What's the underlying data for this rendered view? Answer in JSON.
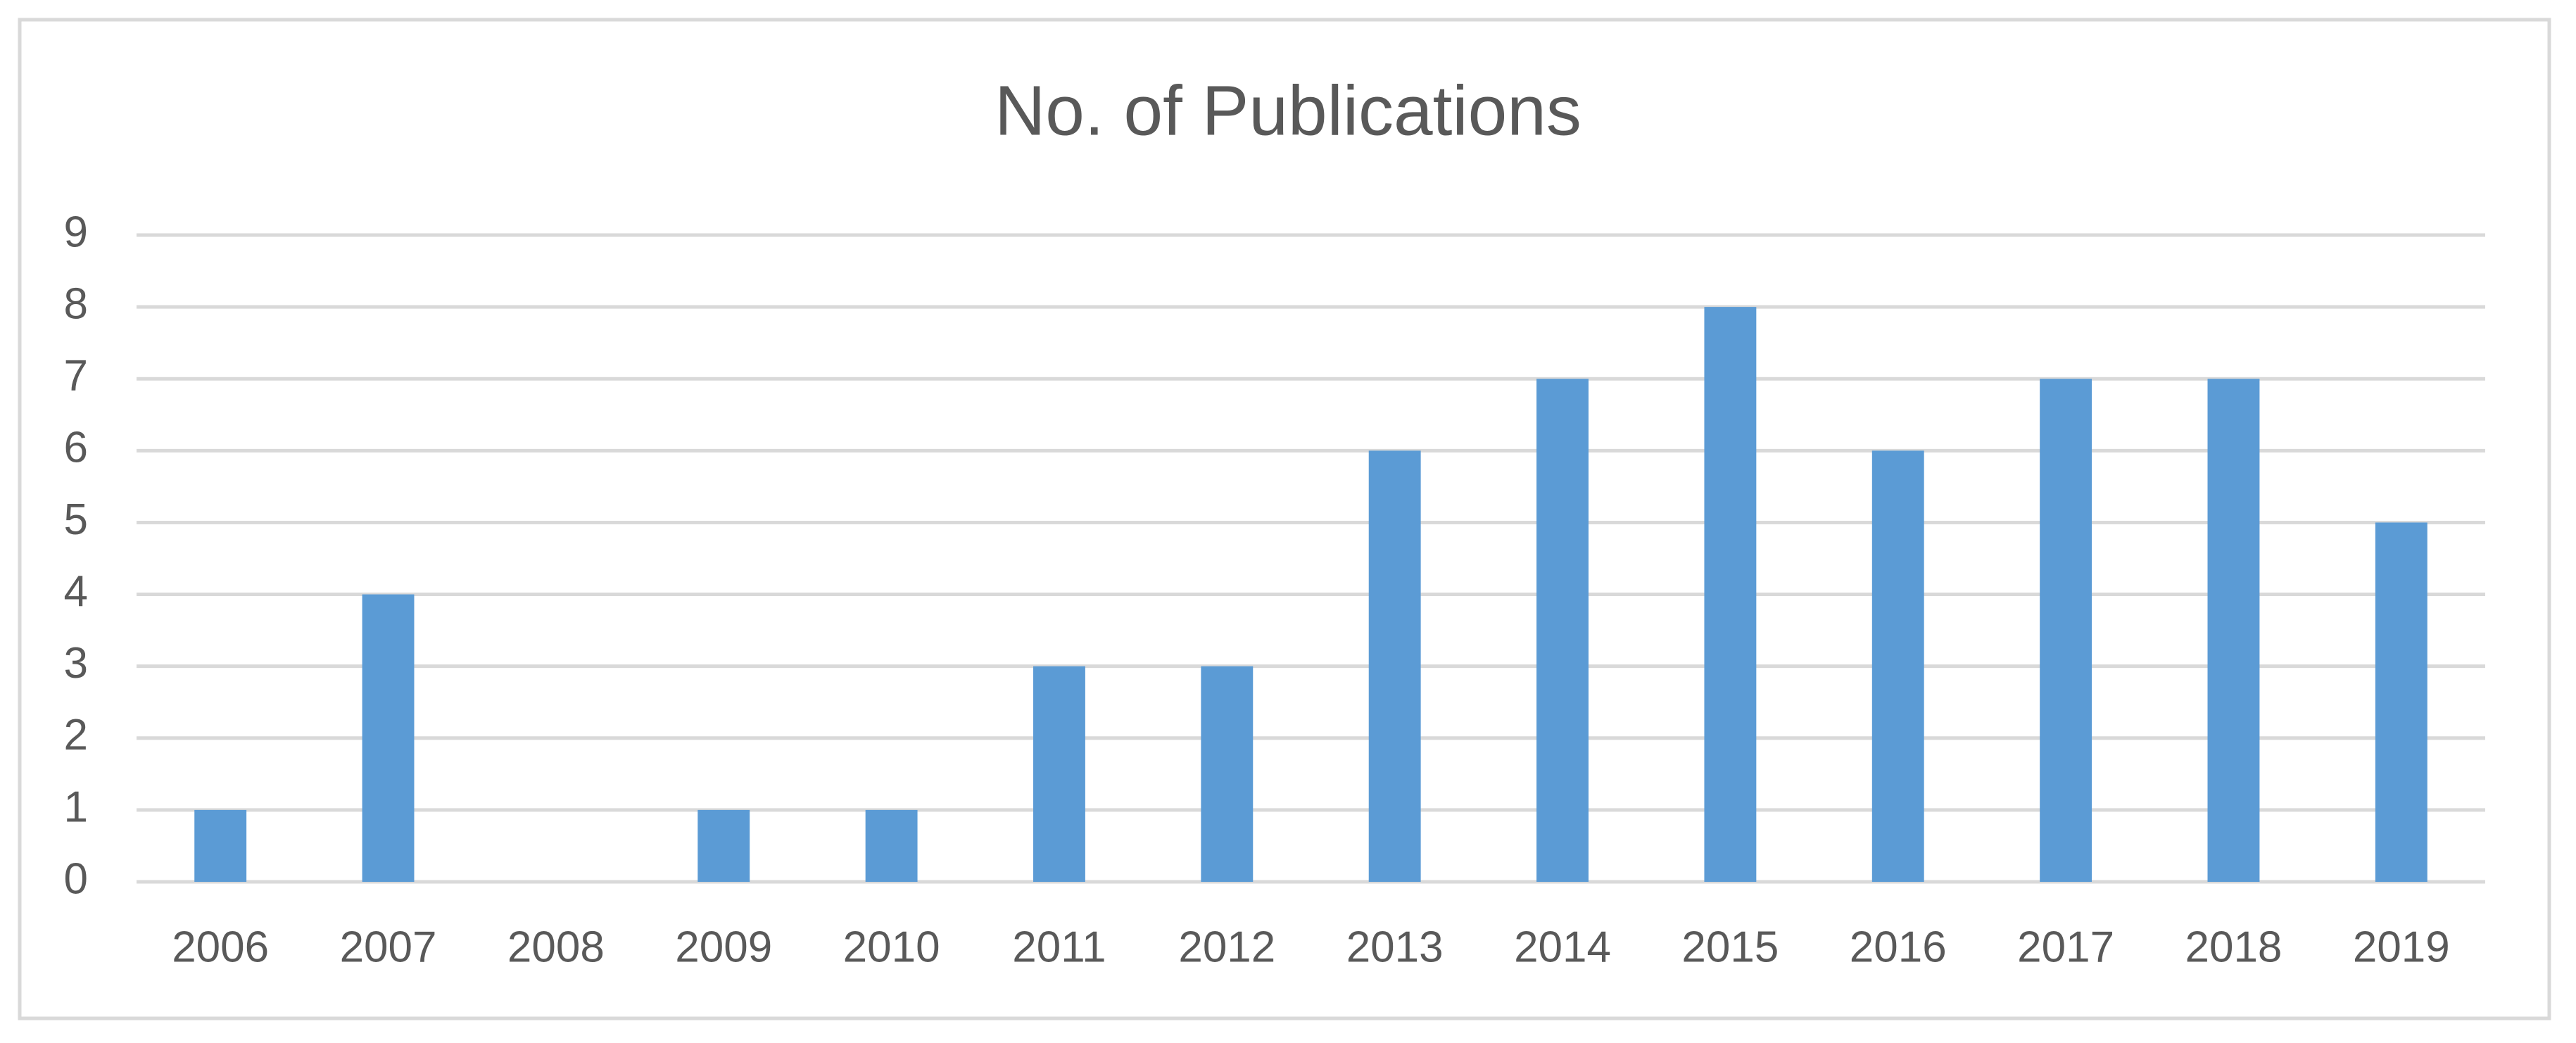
{
  "chart_data": {
    "type": "bar",
    "title": "No. of Publications",
    "categories": [
      "2006",
      "2007",
      "2008",
      "2009",
      "2010",
      "2011",
      "2012",
      "2013",
      "2014",
      "2015",
      "2016",
      "2017",
      "2018",
      "2019"
    ],
    "values": [
      1,
      4,
      0,
      1,
      1,
      3,
      3,
      6,
      7,
      8,
      6,
      7,
      7,
      5
    ],
    "color": "#5b9bd5",
    "ylim": [
      0,
      9
    ],
    "yticks": [
      0,
      1,
      2,
      3,
      4,
      5,
      6,
      7,
      8,
      9
    ],
    "grid": true
  }
}
